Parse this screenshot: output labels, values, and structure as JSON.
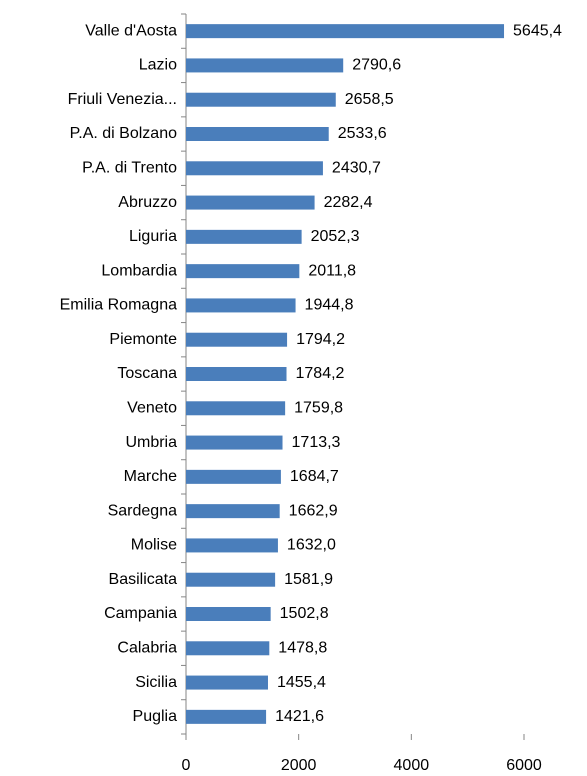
{
  "chart_data": {
    "type": "bar",
    "orientation": "horizontal",
    "color": "#4a7ebb",
    "categories": [
      "Valle d'Aosta",
      "Lazio",
      "Friuli Venezia...",
      "P.A. di Bolzano",
      "P.A. di Trento",
      "Abruzzo",
      "Liguria",
      "Lombardia",
      "Emilia Romagna",
      "Piemonte",
      "Toscana",
      "Veneto",
      "Umbria",
      "Marche",
      "Sardegna",
      "Molise",
      "Basilicata",
      "Campania",
      "Calabria",
      "Sicilia",
      "Puglia"
    ],
    "values": [
      5645.4,
      2790.6,
      2658.5,
      2533.6,
      2430.7,
      2282.4,
      2052.3,
      2011.8,
      1944.8,
      1794.2,
      1784.2,
      1759.8,
      1713.3,
      1684.7,
      1662.9,
      1632.0,
      1581.9,
      1502.8,
      1478.8,
      1455.4,
      1421.6
    ],
    "value_labels": [
      "5645,4",
      "2790,6",
      "2658,5",
      "2533,6",
      "2430,7",
      "2282,4",
      "2052,3",
      "2011,8",
      "1944,8",
      "1794,2",
      "1784,2",
      "1759,8",
      "1713,3",
      "1684,7",
      "1662,9",
      "1632,0",
      "1581,9",
      "1502,8",
      "1478,8",
      "1455,4",
      "1421,6"
    ],
    "xlim": [
      0,
      6000
    ],
    "xticks": [
      0,
      2000,
      4000,
      6000
    ]
  }
}
